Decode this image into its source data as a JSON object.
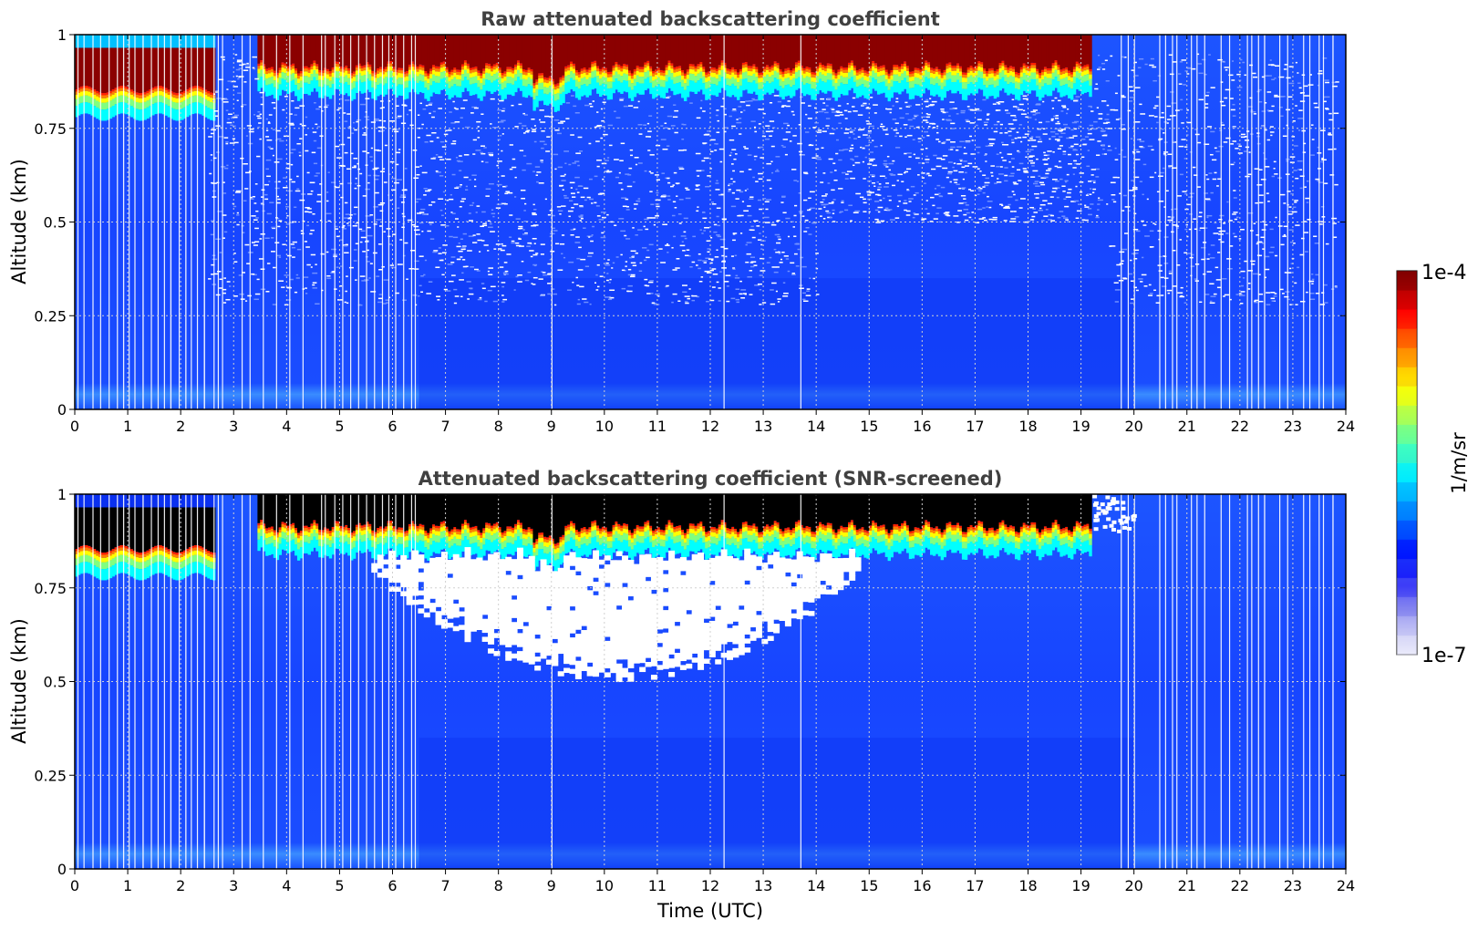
{
  "chart_data": [
    {
      "type": "heatmap",
      "title": "Raw attenuated backscattering coefficient",
      "xlabel": "",
      "ylabel": "Altitude (km)",
      "xlim": [
        0,
        24
      ],
      "ylim": [
        0,
        1
      ],
      "xticks": [
        "0",
        "1",
        "2",
        "3",
        "4",
        "5",
        "6",
        "7",
        "8",
        "9",
        "10",
        "11",
        "12",
        "13",
        "14",
        "15",
        "16",
        "17",
        "18",
        "19",
        "20",
        "21",
        "22",
        "23",
        "24"
      ],
      "yticks": [
        "0",
        "0.25",
        "0.5",
        "0.75",
        "1"
      ],
      "grid": true,
      "colorscale": "jet (log)",
      "layers": [
        {
          "name": "aerosol boundary layer",
          "x": [
            0,
            24
          ],
          "y": [
            0,
            0.85
          ],
          "level": "low (~1e-6)"
        },
        {
          "name": "cloud layer",
          "x": [
            0,
            2.6
          ],
          "y": [
            0.83,
            0.97
          ],
          "level": "high (~1e-4)"
        },
        {
          "name": "cloud layer",
          "x": [
            3.4,
            19.2
          ],
          "y": [
            0.88,
            1.0
          ],
          "level": "high (~1e-4)"
        }
      ]
    },
    {
      "type": "heatmap",
      "title": "Attenuated backscattering coefficient (SNR-screened)",
      "xlabel": "Time (UTC)",
      "ylabel": "Altitude (km)",
      "xlim": [
        0,
        24
      ],
      "ylim": [
        0,
        1
      ],
      "xticks": [
        "0",
        "1",
        "2",
        "3",
        "4",
        "5",
        "6",
        "7",
        "8",
        "9",
        "10",
        "11",
        "12",
        "13",
        "14",
        "15",
        "16",
        "17",
        "18",
        "19",
        "20",
        "21",
        "22",
        "23",
        "24"
      ],
      "yticks": [
        "0",
        "0.25",
        "0.5",
        "0.75",
        "1"
      ],
      "grid": true,
      "colorscale": "jet (log)",
      "layers": [
        {
          "name": "aerosol boundary layer",
          "x": [
            0,
            24
          ],
          "y": [
            0,
            0.85
          ],
          "level": "low (~1e-6)"
        },
        {
          "name": "screened-out region",
          "x": [
            5.6,
            14.8
          ],
          "y": [
            0.47,
            0.88
          ],
          "level": "masked"
        },
        {
          "name": "cloud layer",
          "x": [
            0,
            2.6
          ],
          "y": [
            0.83,
            0.97
          ],
          "level": "masked above cloud"
        },
        {
          "name": "cloud layer",
          "x": [
            3.4,
            19.2
          ],
          "y": [
            0.9,
            1.0
          ],
          "level": "masked above cloud"
        }
      ]
    }
  ],
  "colorbar": {
    "max_label": "1e-4",
    "min_label": "1e-7",
    "unit_label": "1/m/sr",
    "colors": [
      "#e8e8fa",
      "#c8c8f5",
      "#a0a0f0",
      "#7070f0",
      "#3030f5",
      "#0000ff",
      "#0040ff",
      "#0080ff",
      "#00bfff",
      "#00ffff",
      "#40ffbf",
      "#80ff80",
      "#bfff40",
      "#ffff00",
      "#ffbf00",
      "#ff8000",
      "#ff4000",
      "#ff0000",
      "#bf0000",
      "#800000"
    ]
  },
  "colors": {
    "base_blue": "#1a4cff",
    "deep_blue": "#0a2cf0",
    "cloud_red": "#8b0000",
    "masked": "#000000",
    "gap": "#ffffff"
  }
}
